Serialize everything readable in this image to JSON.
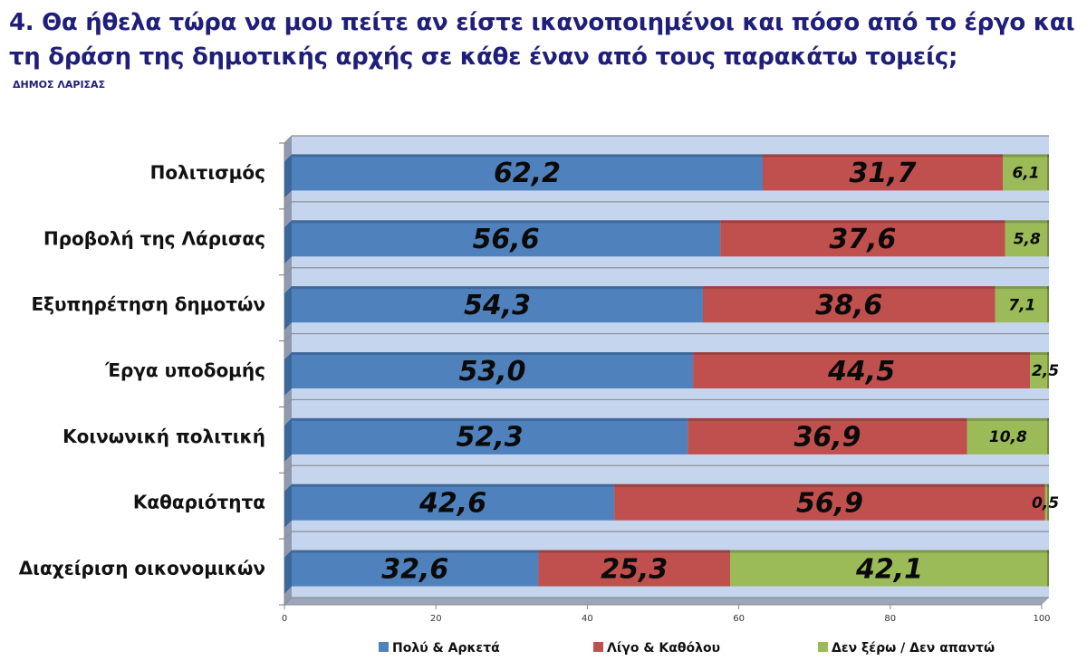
{
  "header": {
    "title": "4. Θα ήθελα τώρα να μου πείτε αν είστε ικανοποιημένοι και πόσο από το έργο και τη δράση της δημοτικής αρχής σε κάθε έναν από τους παρακάτω τομείς;",
    "subtitle": "ΔΗΜΟΣ ΛΑΡΙΣΑΣ"
  },
  "chart_data": {
    "type": "bar",
    "orientation": "horizontal",
    "stacked": true,
    "title": "4. Θα ήθελα τώρα να μου πείτε αν είστε ικανοποιημένοι και πόσο από το έργο και τη δράση της δημοτικής αρχής σε κάθε έναν από τους παρακάτω τομείς;",
    "subtitle": "ΔΗΜΟΣ ΛΑΡΙΣΑΣ",
    "xlabel": "",
    "ylabel": "",
    "xlim": [
      0,
      100
    ],
    "x_ticks": [
      "0",
      "20",
      "40",
      "60",
      "80",
      "100"
    ],
    "grid": true,
    "legend_position": "bottom",
    "categories": [
      "Πολιτισμός",
      "Προβολή της Λάρισας",
      "Εξυπηρέτηση δημοτών",
      "Έργα υποδομής",
      "Κοινωνική πολιτική",
      "Καθαριότητα",
      "Διαχείριση οικονομικών"
    ],
    "series": [
      {
        "name": "Πολύ & Αρκετά",
        "color": "#4f81bd",
        "values": [
          62.2,
          56.6,
          54.3,
          53.0,
          52.3,
          42.6,
          32.6
        ],
        "labels": [
          "62,2",
          "56,6",
          "54,3",
          "53,0",
          "52,3",
          "42,6",
          "32,6"
        ]
      },
      {
        "name": "Λίγο & Καθόλου",
        "color": "#c0504d",
        "values": [
          31.7,
          37.6,
          38.6,
          44.5,
          36.9,
          56.9,
          25.3
        ],
        "labels": [
          "31,7",
          "37,6",
          "38,6",
          "44,5",
          "36,9",
          "56,9",
          "25,3"
        ]
      },
      {
        "name": "Δεν ξέρω / Δεν απαντώ",
        "color": "#9bbb59",
        "values": [
          6.1,
          5.8,
          7.1,
          2.5,
          10.8,
          0.5,
          42.1
        ],
        "labels": [
          "6,1",
          "5,8",
          "7,1",
          "2,5",
          "10,8",
          "0,5",
          "42,1"
        ]
      }
    ],
    "colors": {
      "plot_background": "#c6d5ee",
      "wall_side": "#8f9ab0",
      "floor": "#9ca6b9",
      "gridline": "#8a8f99"
    }
  }
}
